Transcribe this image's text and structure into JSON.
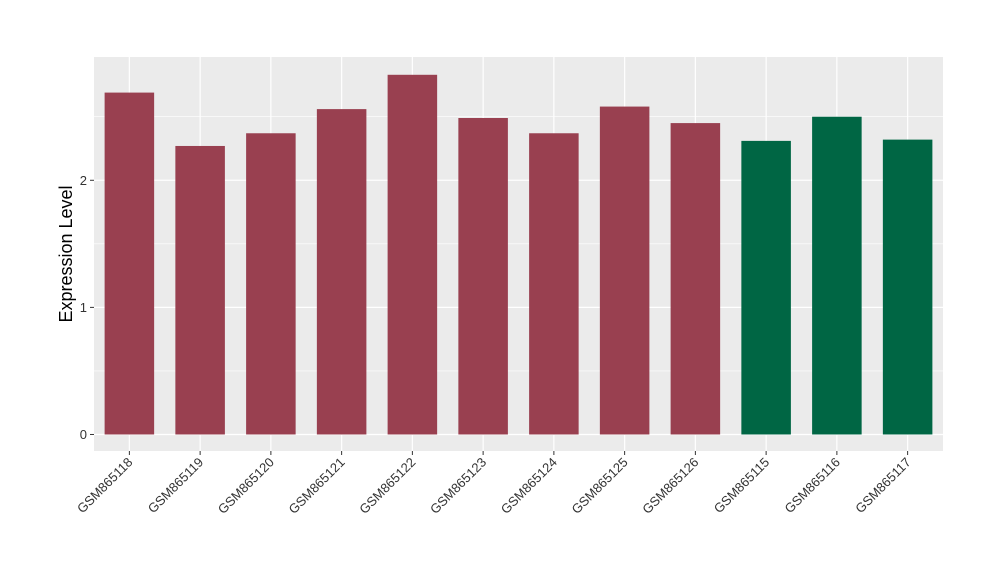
{
  "chart_data": {
    "type": "bar",
    "categories": [
      "GSM865118",
      "GSM865119",
      "GSM865120",
      "GSM865121",
      "GSM865122",
      "GSM865123",
      "GSM865124",
      "GSM865125",
      "GSM865126",
      "GSM865115",
      "GSM865116",
      "GSM865117"
    ],
    "values": [
      2.69,
      2.27,
      2.37,
      2.56,
      2.83,
      2.49,
      2.37,
      2.58,
      2.45,
      2.31,
      2.5,
      2.32
    ],
    "bar_colors": [
      "#994050",
      "#994050",
      "#994050",
      "#994050",
      "#994050",
      "#994050",
      "#994050",
      "#994050",
      "#994050",
      "#006644",
      "#006644",
      "#006644"
    ],
    "ylabel": "Expression Level",
    "xlabel": "",
    "title": "",
    "ylim": [
      -0.13,
      2.97
    ],
    "yticks": [
      0,
      1,
      2
    ],
    "ytick_labels": [
      "0",
      "1",
      "2"
    ],
    "grid": true,
    "panel_background": "#EBEBEB",
    "grid_color": "#FFFFFF"
  }
}
